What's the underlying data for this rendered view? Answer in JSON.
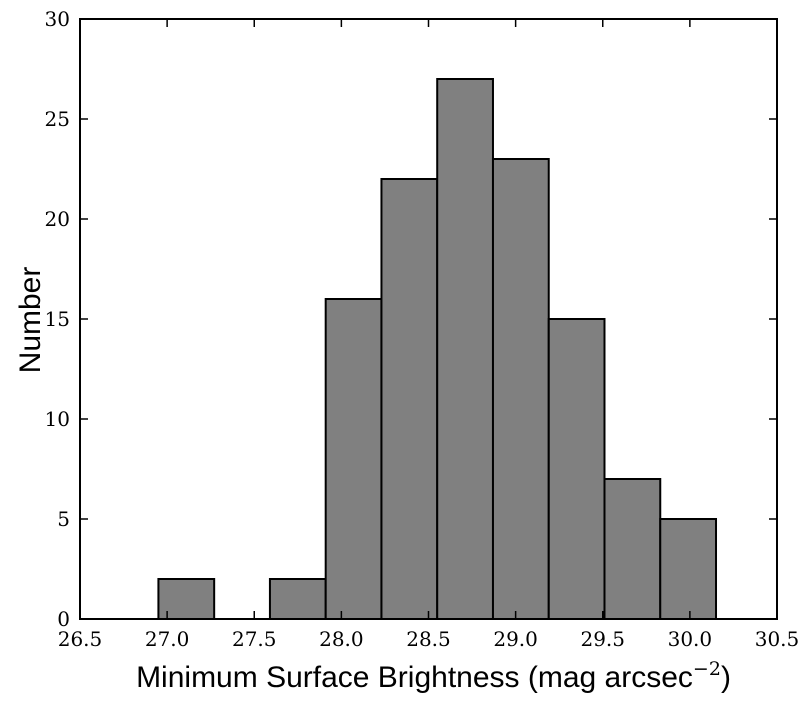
{
  "chart_data": {
    "type": "bar",
    "subtype": "histogram",
    "title": "",
    "xlabel": "Minimum Surface Brightness (mag arcsec",
    "xlabel_superscript": "−2",
    "xlabel_close": ")",
    "ylabel": "Number",
    "xlim": [
      26.5,
      30.5
    ],
    "ylim": [
      0,
      30
    ],
    "x_ticks": [
      26.5,
      27.0,
      27.5,
      28.0,
      28.5,
      29.0,
      29.5,
      30.0,
      30.5
    ],
    "x_tick_labels": [
      "26.5",
      "27.0",
      "27.5",
      "28.0",
      "28.5",
      "29.0",
      "29.5",
      "30.0",
      "30.5"
    ],
    "y_ticks": [
      0,
      5,
      10,
      15,
      20,
      25,
      30
    ],
    "y_tick_labels": [
      "0",
      "5",
      "10",
      "15",
      "20",
      "25",
      "30"
    ],
    "bin_edges": [
      26.95,
      27.27,
      27.59,
      27.91,
      28.23,
      28.55,
      28.87,
      29.19,
      29.51,
      29.83,
      30.15
    ],
    "counts": [
      2,
      0,
      2,
      16,
      22,
      27,
      23,
      15,
      7,
      5
    ],
    "bar_color": "#808080",
    "edge_color": "#000000",
    "grid": false
  }
}
